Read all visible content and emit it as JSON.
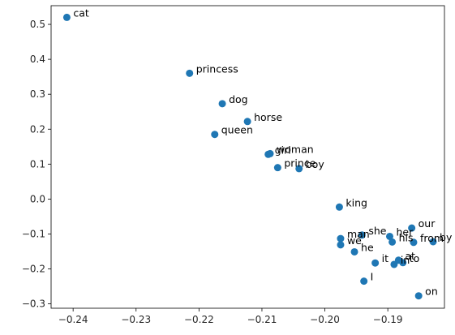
{
  "chart_data": {
    "type": "scatter",
    "title": "",
    "xlabel": "",
    "ylabel": "",
    "xlim": [
      -0.2435,
      -0.181
    ],
    "ylim": [
      -0.3125,
      0.5535
    ],
    "x_ticks": [
      -0.24,
      -0.23,
      -0.22,
      -0.21,
      -0.2,
      -0.19
    ],
    "x_tick_labels": [
      "−0.24",
      "−0.23",
      "−0.22",
      "−0.21",
      "−0.20",
      "−0.19"
    ],
    "y_ticks": [
      -0.3,
      -0.2,
      -0.1,
      0.0,
      0.1,
      0.2,
      0.3,
      0.4,
      0.5
    ],
    "y_tick_labels": [
      "−0.3",
      "−0.2",
      "−0.1",
      "0.0",
      "0.1",
      "0.2",
      "0.3",
      "0.4",
      "0.5"
    ],
    "grid": false,
    "marker_color": "#1f77b4",
    "points": [
      {
        "label": "cat",
        "x": -0.241,
        "y": 0.52
      },
      {
        "label": "princess",
        "x": -0.2215,
        "y": 0.36
      },
      {
        "label": "dog",
        "x": -0.2163,
        "y": 0.273
      },
      {
        "label": "horse",
        "x": -0.2123,
        "y": 0.222
      },
      {
        "label": "queen",
        "x": -0.2175,
        "y": 0.185
      },
      {
        "label": "girl",
        "x": -0.209,
        "y": 0.128
      },
      {
        "label": "woman",
        "x": -0.2087,
        "y": 0.13
      },
      {
        "label": "prince",
        "x": -0.2075,
        "y": 0.09
      },
      {
        "label": "boy",
        "x": -0.2041,
        "y": 0.087
      },
      {
        "label": "king",
        "x": -0.1977,
        "y": -0.023
      },
      {
        "label": "our",
        "x": -0.1862,
        "y": -0.083
      },
      {
        "label": "she",
        "x": -0.1941,
        "y": -0.103
      },
      {
        "label": "her",
        "x": -0.1897,
        "y": -0.107
      },
      {
        "label": "man",
        "x": -0.1975,
        "y": -0.113
      },
      {
        "label": "his",
        "x": -0.1893,
        "y": -0.123
      },
      {
        "label": "from",
        "x": -0.1859,
        "y": -0.124
      },
      {
        "label": "by",
        "x": -0.1828,
        "y": -0.122
      },
      {
        "label": "we",
        "x": -0.1975,
        "y": -0.131
      },
      {
        "label": "he",
        "x": -0.1953,
        "y": -0.151
      },
      {
        "label": "at",
        "x": -0.1883,
        "y": -0.175
      },
      {
        "label": "it",
        "x": -0.192,
        "y": -0.183
      },
      {
        "label": "in",
        "x": -0.189,
        "y": -0.187
      },
      {
        "label": "to",
        "x": -0.1876,
        "y": -0.182
      },
      {
        "label": "I",
        "x": -0.1938,
        "y": -0.235
      },
      {
        "label": "on",
        "x": -0.1851,
        "y": -0.277
      }
    ]
  }
}
